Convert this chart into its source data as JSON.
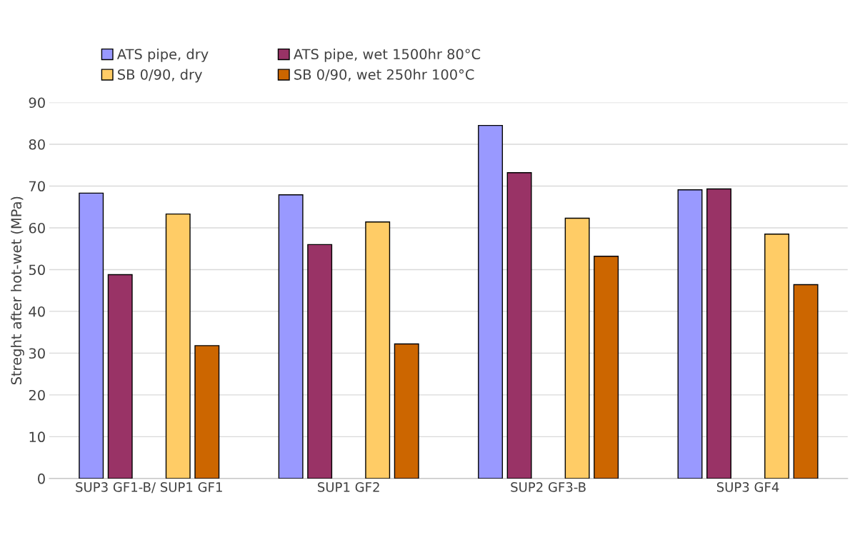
{
  "chart_data": {
    "type": "bar",
    "ylabel": "Streght after hot-wet (MPa)",
    "categories": [
      "SUP3 GF1-B/ SUP1 GF1",
      "SUP1 GF2",
      "SUP2 GF3-B",
      "SUP3 GF4"
    ],
    "series": [
      {
        "name": "ATS pipe, dry",
        "color": "#9999ff",
        "values": [
          68.3,
          67.9,
          84.5,
          69.1
        ]
      },
      {
        "name": "ATS pipe, wet 1500hr 80°C",
        "color": "#993366",
        "values": [
          48.8,
          56.0,
          73.2,
          69.3
        ]
      },
      {
        "values": [
          null,
          null,
          null,
          null
        ]
      },
      {
        "name": "SB 0/90, dry",
        "color": "#ffcc66",
        "values": [
          63.3,
          61.4,
          62.3,
          58.5
        ]
      },
      {
        "name": "SB 0/90, wet 250hr 100°C",
        "color": "#cc6600",
        "values": [
          31.8,
          32.2,
          53.2,
          46.4
        ]
      }
    ],
    "ylim": [
      0,
      90
    ],
    "yticks": [
      0,
      10,
      20,
      30,
      40,
      50,
      60,
      70,
      80,
      90
    ],
    "grid": "y",
    "legend": "top"
  }
}
